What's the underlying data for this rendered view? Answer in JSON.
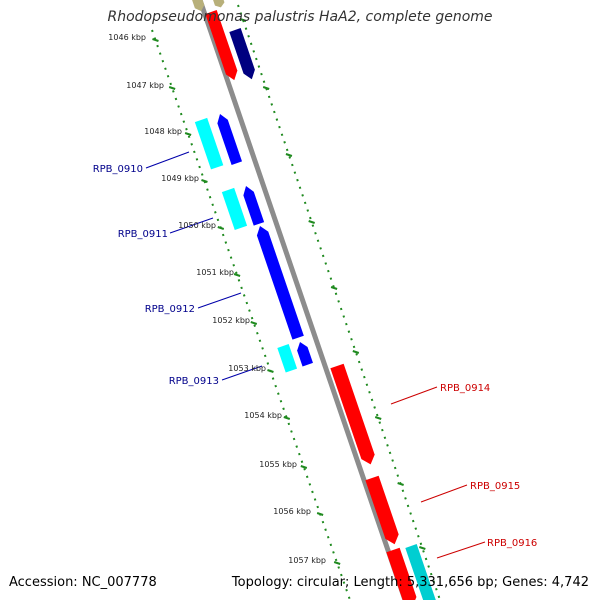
{
  "title": "Rhodopseudomonas palustris HaA2, complete genome",
  "footer": {
    "accession": "Accession: NC_007778",
    "summary": "Topology: circular; Length: 5,331,656 bp; Genes: 4,742"
  },
  "colors": {
    "backbone": "#8c8c8c",
    "tick": "#1f8a1f",
    "forward_cds": "#ff0000",
    "forward_other": "#00ced1",
    "reverse_cds": "#0000ff",
    "reverse_other": "#00ffff",
    "dark_cds": "#000080",
    "left_label": "#00008b",
    "right_label": "#cc0000",
    "kbp_label": "#222222"
  },
  "kbp_labels": [
    "1046 kbp",
    "1047 kbp",
    "1048 kbp",
    "1049 kbp",
    "1050 kbp",
    "1051 kbp",
    "1052 kbp",
    "1053 kbp",
    "1054 kbp",
    "1055 kbp",
    "1056 kbp",
    "1057 kbp"
  ],
  "gene_labels_left": [
    "RPB_0910",
    "RPB_0911",
    "RPB_0912",
    "RPB_0913"
  ],
  "gene_labels_right": [
    "RPB_0914",
    "RPB_0915",
    "RPB_0916"
  ]
}
